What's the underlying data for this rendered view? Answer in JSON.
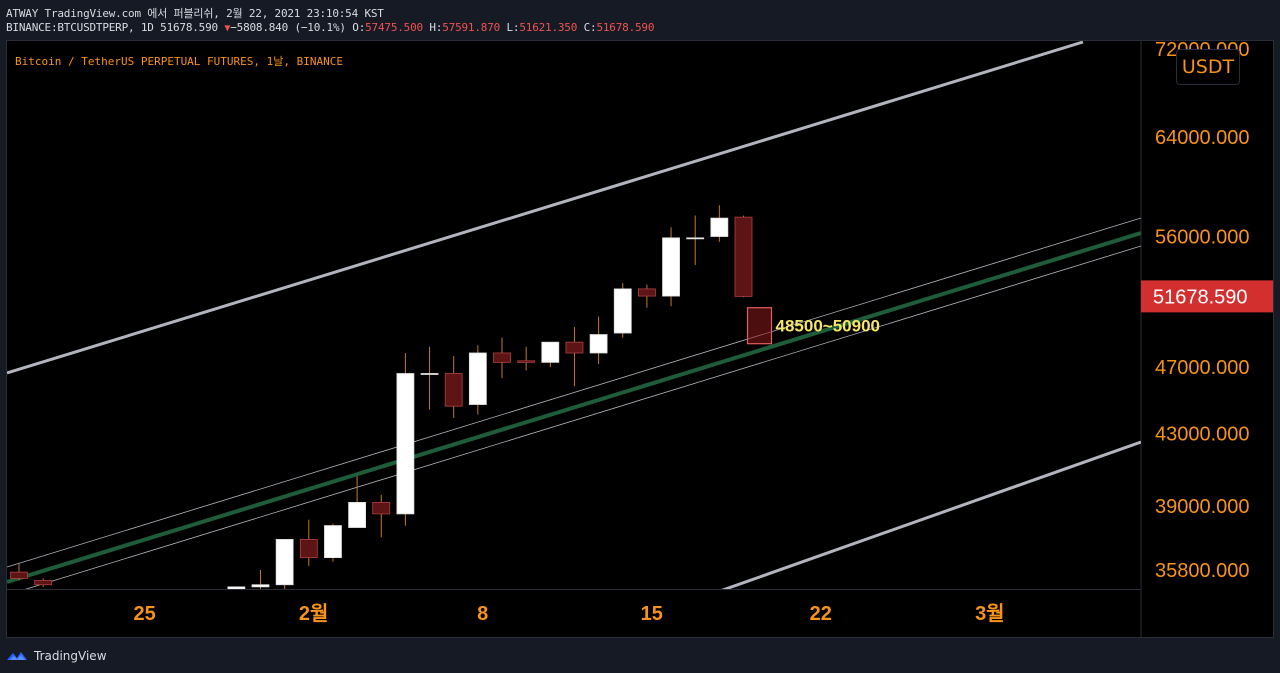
{
  "header": {
    "line1": "ATWAY TradingView.com 에서 퍼블리쉬, 2월 22, 2021 23:10:54 KST",
    "symbol_interval": "BINANCE:BTCUSDTPERP, 1D 51678.590",
    "change": "−5808.840 (−10.1%)",
    "o_label": "O:",
    "o_value": "57475.500",
    "h_label": "H:",
    "h_value": "57591.870",
    "l_label": "L:",
    "l_value": "51621.350",
    "c_label": "C:",
    "c_value": "51678.590"
  },
  "chart": {
    "symbol_title": "Bitcoin / TetherUS PERPETUAL FUTURES, 1날, BINANCE",
    "currency": "USDT"
  },
  "footer": {
    "brand": "TradingView"
  },
  "colors": {
    "up": "#ffffff",
    "down": "#5c1414",
    "wick": "#c07a2a",
    "axis_text": "#f7931a",
    "channel_outer": "#b2b5be",
    "channel_mid": "#1e5c3a",
    "last_price_bg": "#d32f2f",
    "zone": "#8b1a1a",
    "zone_label": "#f5e56b"
  },
  "chart_data": {
    "type": "candlestick",
    "title": "Bitcoin / TetherUS PERPETUAL FUTURES, 1날, BINANCE",
    "ylim": [
      34900,
      72600
    ],
    "y_ticks": [
      "72000.000",
      "64000.000",
      "56000.000",
      "47000.000",
      "43000.000",
      "39000.000",
      "35800.000"
    ],
    "x_ticks": [
      "25",
      "2월",
      "8",
      "15",
      "22",
      "3월"
    ],
    "last_price": "51678.590",
    "candles": [
      {
        "x": 0,
        "o": 35700,
        "h": 36100,
        "l": 35300,
        "c": 35400
      },
      {
        "x": 1,
        "o": 35300,
        "h": 35400,
        "l": 35000,
        "c": 35100
      },
      {
        "x": 9,
        "o": 34900,
        "h": 35000,
        "l": 34600,
        "c": 35000
      },
      {
        "x": 10,
        "o": 35000,
        "h": 35800,
        "l": 34800,
        "c": 35100
      },
      {
        "x": 11,
        "o": 35100,
        "h": 37300,
        "l": 34800,
        "c": 37300
      },
      {
        "x": 12,
        "o": 37300,
        "h": 38300,
        "l": 36000,
        "c": 36400
      },
      {
        "x": 13,
        "o": 36400,
        "h": 38100,
        "l": 36200,
        "c": 38000
      },
      {
        "x": 14,
        "o": 37900,
        "h": 40600,
        "l": 37900,
        "c": 39200
      },
      {
        "x": 15,
        "o": 39200,
        "h": 39600,
        "l": 37400,
        "c": 38600
      },
      {
        "x": 16,
        "o": 38600,
        "h": 47900,
        "l": 38000,
        "c": 46600
      },
      {
        "x": 17,
        "o": 46600,
        "h": 48300,
        "l": 44400,
        "c": 46600
      },
      {
        "x": 18,
        "o": 46600,
        "h": 47700,
        "l": 43900,
        "c": 44600
      },
      {
        "x": 19,
        "o": 44700,
        "h": 48400,
        "l": 44100,
        "c": 47900
      },
      {
        "x": 20,
        "o": 47900,
        "h": 48900,
        "l": 46300,
        "c": 47300
      },
      {
        "x": 21,
        "o": 47400,
        "h": 48300,
        "l": 46800,
        "c": 47300
      },
      {
        "x": 22,
        "o": 47300,
        "h": 48600,
        "l": 47000,
        "c": 48600
      },
      {
        "x": 23,
        "o": 48600,
        "h": 49600,
        "l": 45800,
        "c": 47900
      },
      {
        "x": 24,
        "o": 47900,
        "h": 50300,
        "l": 47200,
        "c": 49100
      },
      {
        "x": 25,
        "o": 49200,
        "h": 52600,
        "l": 48900,
        "c": 52200
      },
      {
        "x": 26,
        "o": 52200,
        "h": 52500,
        "l": 50900,
        "c": 51700
      },
      {
        "x": 27,
        "o": 51700,
        "h": 56700,
        "l": 51000,
        "c": 55900
      },
      {
        "x": 28,
        "o": 55900,
        "h": 57600,
        "l": 53900,
        "c": 55900
      },
      {
        "x": 29,
        "o": 56000,
        "h": 58400,
        "l": 55600,
        "c": 57400
      },
      {
        "x": 30,
        "o": 57475.5,
        "h": 57591.87,
        "l": 51621.35,
        "c": 51678.59
      }
    ],
    "zone": {
      "low": 48500,
      "high": 50900,
      "label": "48500~50900"
    }
  }
}
